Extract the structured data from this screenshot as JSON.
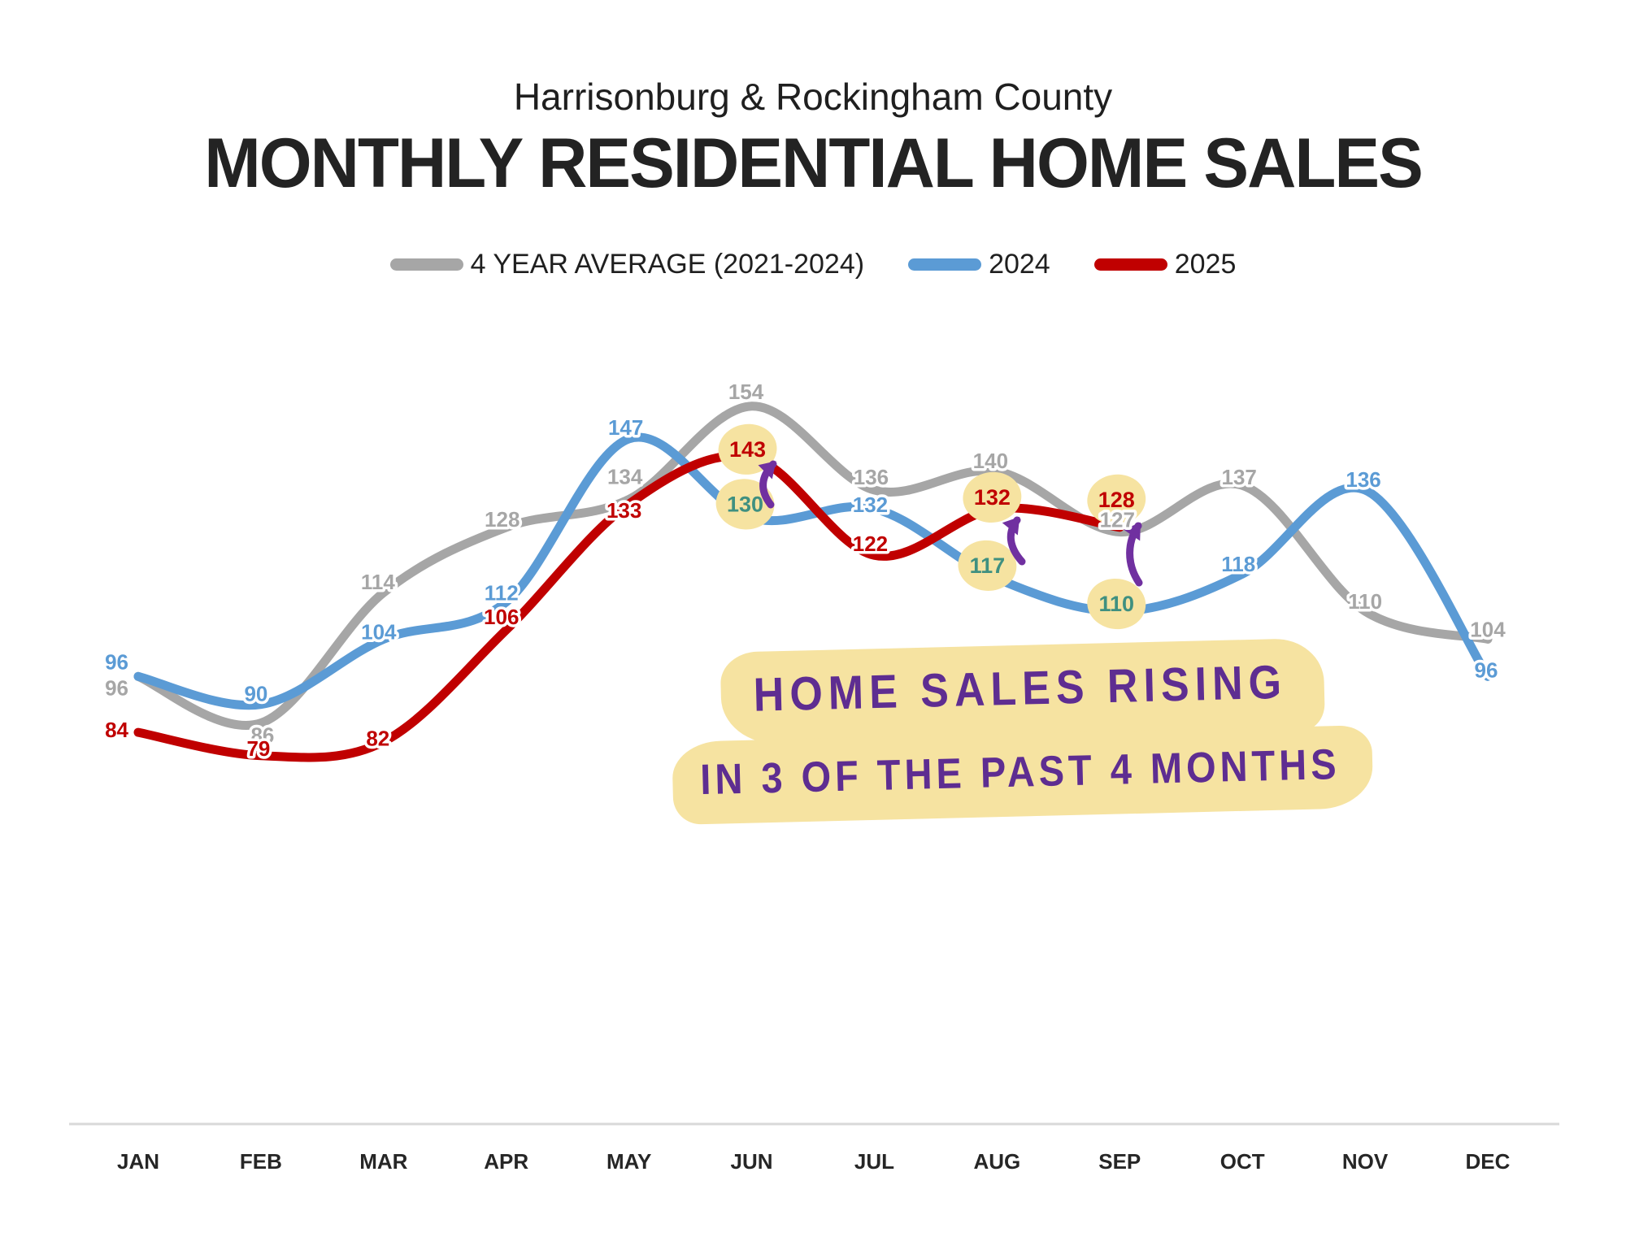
{
  "page": {
    "subtitle": "Harrisonburg & Rockingham County",
    "title": "MONTHLY RESIDENTIAL HOME SALES"
  },
  "legend": {
    "items": [
      {
        "label": "4 YEAR AVERAGE (2021-2024)",
        "color": "#A6A6A6"
      },
      {
        "label": "2024",
        "color": "#5B9BD5"
      },
      {
        "label": "2025",
        "color": "#C00000"
      }
    ]
  },
  "annotation": {
    "line1": "HOME SALES RISING",
    "line2": "IN 3 OF THE PAST 4 MONTHS",
    "text_color": "#5E2D91",
    "highlight_color": "#F6E3A1"
  },
  "chart_data": {
    "type": "line",
    "title": "MONTHLY RESIDENTIAL HOME SALES",
    "xlabel": "",
    "ylabel": "",
    "grid": false,
    "legend_position": "top",
    "ylim": [
      70,
      165
    ],
    "categories": [
      "JAN",
      "FEB",
      "MAR",
      "APR",
      "MAY",
      "JUN",
      "JUL",
      "AUG",
      "SEP",
      "OCT",
      "NOV",
      "DEC"
    ],
    "series": [
      {
        "name": "4 YEAR AVERAGE (2021-2024)",
        "color": "#A6A6A6",
        "values": [
          96,
          86,
          114,
          128,
          134,
          154,
          136,
          140,
          127,
          137,
          110,
          104
        ]
      },
      {
        "name": "2024",
        "color": "#5B9BD5",
        "values": [
          96,
          90,
          104,
          112,
          147,
          130,
          132,
          117,
          110,
          118,
          136,
          96
        ]
      },
      {
        "name": "2025",
        "color": "#C00000",
        "values": [
          84,
          79,
          82,
          106,
          133,
          143,
          122,
          132,
          128,
          null,
          null,
          null
        ]
      }
    ],
    "circled_points": [
      {
        "series": "2025",
        "month": "JUN",
        "value": 143
      },
      {
        "series": "2024",
        "month": "JUN",
        "value": 130
      },
      {
        "series": "2025",
        "month": "AUG",
        "value": 132
      },
      {
        "series": "2024",
        "month": "AUG",
        "value": 117
      },
      {
        "series": "2025",
        "month": "SEP",
        "value": 128
      },
      {
        "series": "2024",
        "month": "SEP",
        "value": 110
      }
    ],
    "arrows": [
      {
        "month": "JUN",
        "from_series": "2024",
        "from_value": 130,
        "to_series": "2025",
        "to_value": 143
      },
      {
        "month": "AUG",
        "from_series": "2024",
        "from_value": 117,
        "to_series": "2025",
        "to_value": 132
      },
      {
        "month": "SEP",
        "from_series": "2024",
        "from_value": 110,
        "to_series": "2025",
        "to_value": 128
      }
    ],
    "circle_fill": "#F6E3A1",
    "circled_2024_text_color": "#3F9080",
    "arrow_color": "#7030A0"
  }
}
